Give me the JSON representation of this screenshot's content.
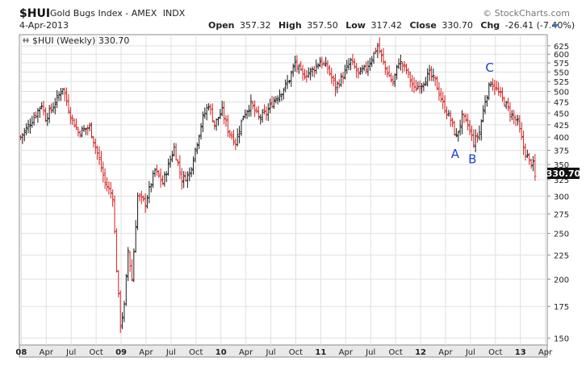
{
  "header": {
    "symbol": "$HUI",
    "name": "Gold Bugs Index - AMEX",
    "exchange": "INDX",
    "date": "4-Apr-2013",
    "open_label": "Open",
    "open": "357.32",
    "high_label": "High",
    "high": "357.50",
    "low_label": "Low",
    "low": "317.42",
    "close_label": "Close",
    "close": "330.70",
    "chg_label": "Chg",
    "chg": "-26.41 (-7.40%)",
    "brand": "© StockCharts.com"
  },
  "colors": {
    "up": "#1a1a1a",
    "down": "#d42020",
    "grid": "#dfdfdf",
    "frame": "#8c8c8c",
    "panel_bg": "#e9e9e9",
    "annotation": "#1f3fd0",
    "price_box_bg": "#111111",
    "price_box_text": "#ffffff"
  },
  "chart_data": {
    "type": "ohlc",
    "title": "$HUI (Weekly) 330.70",
    "scale": "log",
    "ylim": [
      145,
      660
    ],
    "y_ticks": [
      150,
      175,
      200,
      225,
      250,
      275,
      300,
      325,
      350,
      375,
      400,
      425,
      450,
      475,
      500,
      525,
      550,
      575,
      600,
      625
    ],
    "x_ticks": [
      {
        "label": "08",
        "week": 1,
        "bold": true
      },
      {
        "label": "Apr",
        "week": 14
      },
      {
        "label": "Jul",
        "week": 27
      },
      {
        "label": "Oct",
        "week": 40
      },
      {
        "label": "09",
        "week": 53,
        "bold": true
      },
      {
        "label": "Apr",
        "week": 66
      },
      {
        "label": "Jul",
        "week": 79
      },
      {
        "label": "Oct",
        "week": 92
      },
      {
        "label": "10",
        "week": 105,
        "bold": true
      },
      {
        "label": "Apr",
        "week": 118
      },
      {
        "label": "Jul",
        "week": 131
      },
      {
        "label": "Oct",
        "week": 144
      },
      {
        "label": "11",
        "week": 157,
        "bold": true
      },
      {
        "label": "Apr",
        "week": 170
      },
      {
        "label": "Jul",
        "week": 183
      },
      {
        "label": "Oct",
        "week": 196
      },
      {
        "label": "12",
        "week": 209,
        "bold": true
      },
      {
        "label": "Apr",
        "week": 222
      },
      {
        "label": "Jul",
        "week": 235
      },
      {
        "label": "Oct",
        "week": 248
      },
      {
        "label": "13",
        "week": 261,
        "bold": true
      },
      {
        "label": "Apr",
        "week": 274
      }
    ],
    "last_price": "330.70",
    "keypoints": [
      [
        0,
        400
      ],
      [
        6,
        435
      ],
      [
        11,
        470
      ],
      [
        13,
        440
      ],
      [
        17,
        465
      ],
      [
        22,
        510
      ],
      [
        26,
        445
      ],
      [
        30,
        410
      ],
      [
        36,
        420
      ],
      [
        40,
        370
      ],
      [
        44,
        320
      ],
      [
        48,
        300
      ],
      [
        50,
        210
      ],
      [
        52,
        160
      ],
      [
        54,
        175
      ],
      [
        56,
        230
      ],
      [
        58,
        200
      ],
      [
        61,
        300
      ],
      [
        65,
        290
      ],
      [
        70,
        340
      ],
      [
        74,
        320
      ],
      [
        80,
        380
      ],
      [
        84,
        325
      ],
      [
        88,
        335
      ],
      [
        95,
        440
      ],
      [
        98,
        470
      ],
      [
        101,
        425
      ],
      [
        105,
        455
      ],
      [
        108,
        415
      ],
      [
        112,
        390
      ],
      [
        116,
        445
      ],
      [
        120,
        470
      ],
      [
        124,
        440
      ],
      [
        128,
        450
      ],
      [
        132,
        480
      ],
      [
        136,
        500
      ],
      [
        140,
        530
      ],
      [
        143,
        575
      ],
      [
        147,
        540
      ],
      [
        152,
        555
      ],
      [
        156,
        580
      ],
      [
        160,
        560
      ],
      [
        164,
        510
      ],
      [
        168,
        540
      ],
      [
        172,
        580
      ],
      [
        176,
        545
      ],
      [
        180,
        560
      ],
      [
        184,
        600
      ],
      [
        186,
        625
      ],
      [
        190,
        560
      ],
      [
        194,
        520
      ],
      [
        197,
        580
      ],
      [
        201,
        555
      ],
      [
        205,
        505
      ],
      [
        209,
        520
      ],
      [
        213,
        545
      ],
      [
        216,
        525
      ],
      [
        220,
        470
      ],
      [
        224,
        435
      ],
      [
        227,
        400
      ],
      [
        230,
        440
      ],
      [
        233,
        425
      ],
      [
        236,
        390
      ],
      [
        239,
        410
      ],
      [
        242,
        480
      ],
      [
        245,
        525
      ],
      [
        248,
        505
      ],
      [
        252,
        475
      ],
      [
        256,
        445
      ],
      [
        259,
        430
      ],
      [
        262,
        380
      ],
      [
        265,
        355
      ],
      [
        267,
        350
      ],
      [
        268,
        331
      ]
    ],
    "points": [
      {
        "label": "A",
        "week": 227,
        "value": 400,
        "pos": "below"
      },
      {
        "label": "B",
        "week": 236,
        "value": 390,
        "pos": "below"
      },
      {
        "label": "C",
        "week": 245,
        "value": 525,
        "pos": "above"
      }
    ]
  }
}
